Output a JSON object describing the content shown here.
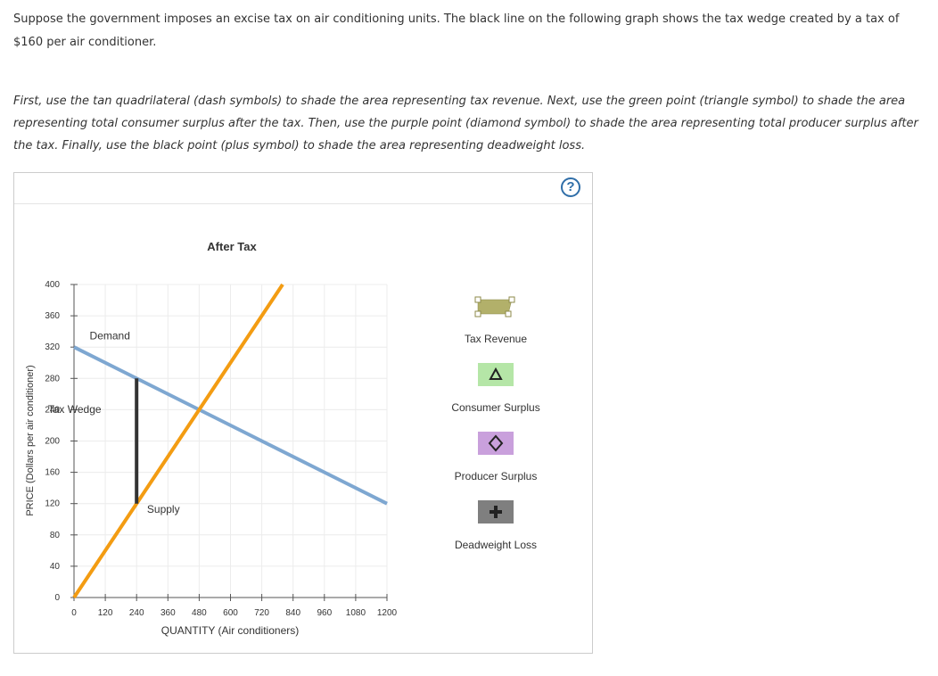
{
  "question": {
    "intro": "Suppose the government imposes an excise tax on air conditioning units. The black line on the following graph shows the tax wedge created by a tax of $160 per air conditioner.",
    "instructions": "First, use the tan quadrilateral (dash symbols) to shade the area representing tax revenue. Next, use the green point (triangle symbol) to shade the area representing total consumer surplus after the tax. Then, use the purple point (diamond symbol) to shade the area representing total producer surplus after the tax. Finally, use the black point (plus symbol) to shade the area representing deadweight loss."
  },
  "help": {
    "label": "?"
  },
  "legend": {
    "items": [
      {
        "label": "Tax Revenue",
        "icon": "tan-quadrilateral-dash-icon",
        "color": "#b2b06a"
      },
      {
        "label": "Consumer Surplus",
        "icon": "green-triangle-icon",
        "color": "#b5e6a7"
      },
      {
        "label": "Producer Surplus",
        "icon": "purple-diamond-icon",
        "color": "#c9a0dc"
      },
      {
        "label": "Deadweight Loss",
        "icon": "black-plus-icon",
        "color": "#7f7f7f"
      }
    ]
  },
  "chart_data": {
    "type": "line",
    "title": "After Tax",
    "xlabel": "QUANTITY (Air conditioners)",
    "ylabel": "PRICE (Dollars per air conditioner)",
    "xlim": [
      0,
      1200
    ],
    "ylim": [
      0,
      400
    ],
    "xticks": [
      0,
      120,
      240,
      360,
      480,
      600,
      720,
      840,
      960,
      1080,
      1200
    ],
    "yticks": [
      0,
      40,
      80,
      120,
      160,
      200,
      240,
      280,
      320,
      360,
      400
    ],
    "grid": true,
    "series": [
      {
        "name": "Demand",
        "color": "#7ea7d1",
        "points": [
          [
            0,
            320
          ],
          [
            1200,
            120
          ]
        ]
      },
      {
        "name": "Supply",
        "color": "#f39c12",
        "points": [
          [
            0,
            0
          ],
          [
            800,
            400
          ]
        ]
      }
    ],
    "annotations": [
      {
        "label": "Tax Wedge",
        "type": "vertical-segment",
        "x": 240,
        "y_from": 120,
        "y_to": 280,
        "color": "#333333"
      }
    ]
  }
}
